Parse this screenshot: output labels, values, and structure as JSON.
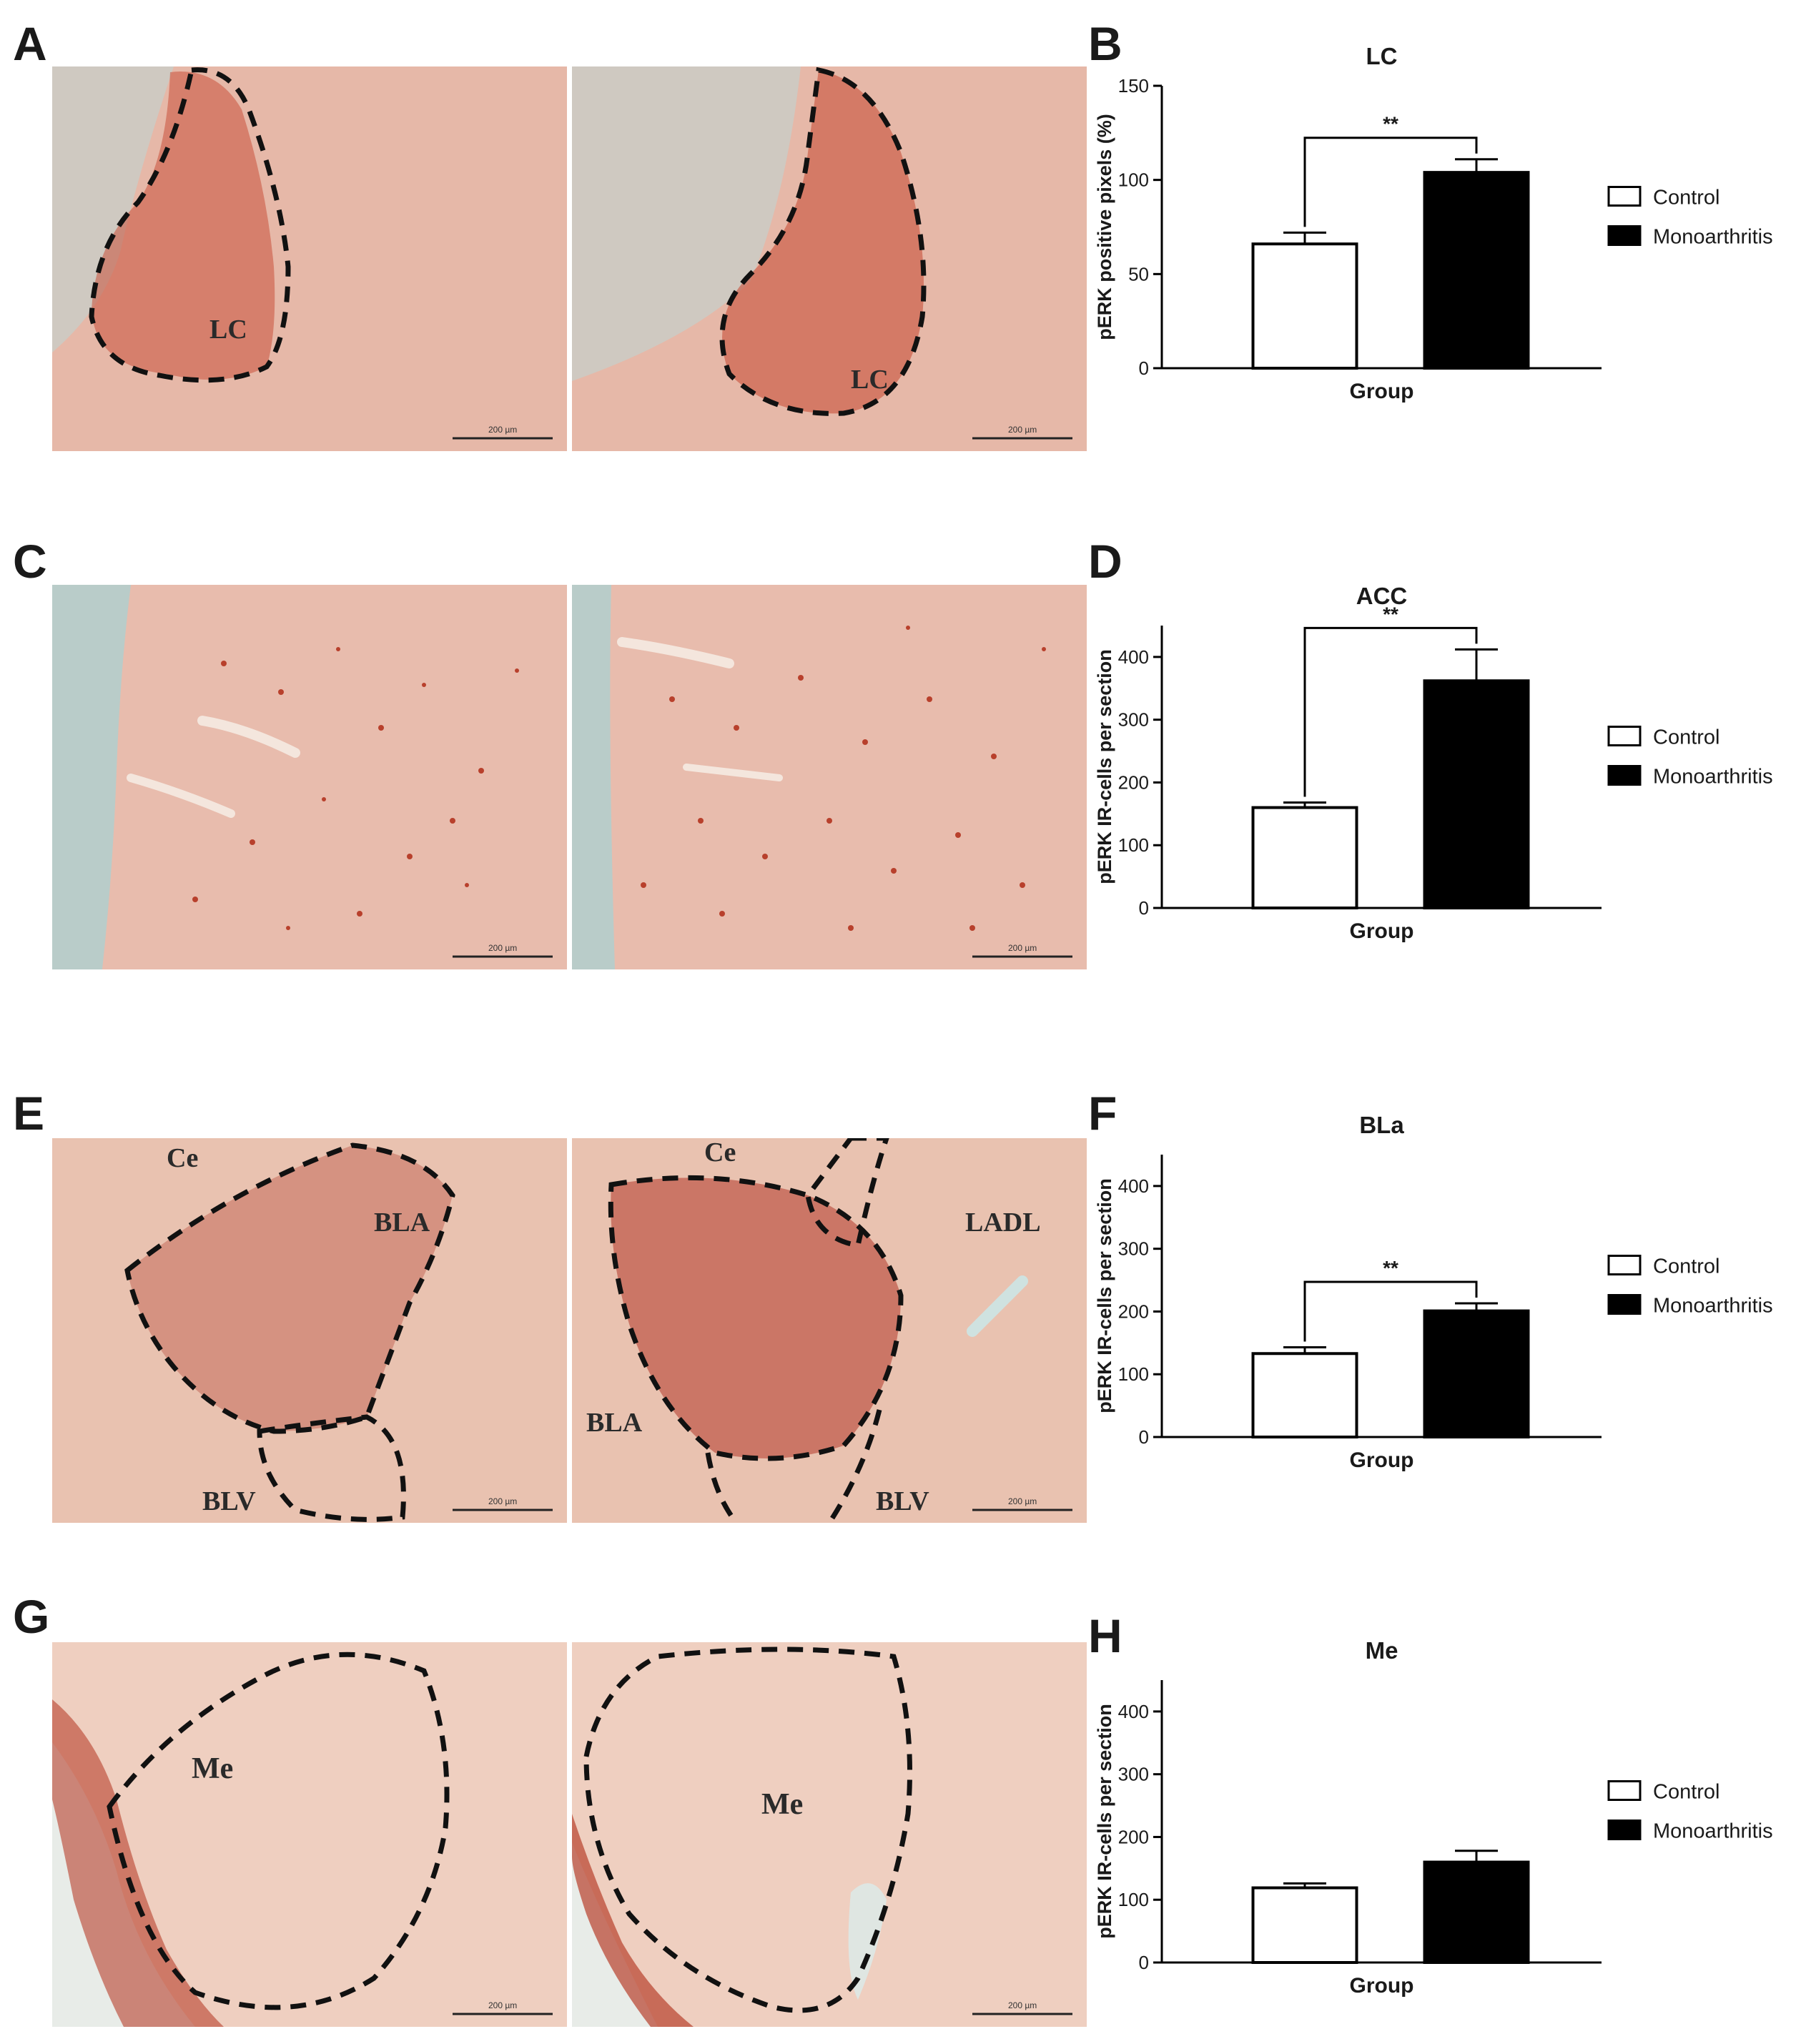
{
  "panels": {
    "letters": [
      "A",
      "B",
      "C",
      "D",
      "E",
      "F",
      "G",
      "H"
    ]
  },
  "micrographs": {
    "scale_bar": "200 µm",
    "rows": [
      {
        "id": "A",
        "left_labels": [
          "LC"
        ],
        "right_labels": [
          "LC"
        ],
        "tint": "#e6b8a8",
        "dense": "#c8503a"
      },
      {
        "id": "C",
        "left_labels": [],
        "right_labels": [],
        "tint": "#e8bcad",
        "dense": "#b8402c"
      },
      {
        "id": "E",
        "left_labels": [
          "Ce",
          "BLA",
          "BLV"
        ],
        "right_labels": [
          "Ce",
          "LADL",
          "BLA",
          "BLV"
        ],
        "tint": "#e9c2b0",
        "dense": "#b3382a"
      },
      {
        "id": "G",
        "left_labels": [
          "Me"
        ],
        "right_labels": [
          "Me"
        ],
        "tint": "#efcfc0",
        "dense": "#b8402c"
      }
    ]
  },
  "chart_data": [
    {
      "type": "bar",
      "panel": "B",
      "title": "LC",
      "xlabel": "Group",
      "ylabel": "pERK positive pixels (%)",
      "categories": [
        "Control",
        "Monoarthritis"
      ],
      "values": [
        66,
        104
      ],
      "errors": [
        6,
        7
      ],
      "ylim": [
        0,
        150
      ],
      "yticks": [
        0,
        50,
        100,
        150
      ],
      "significance": "**",
      "legend": [
        "Control",
        "Monoarthritis"
      ],
      "colors": [
        "#ffffff",
        "#000000"
      ]
    },
    {
      "type": "bar",
      "panel": "D",
      "title": "ACC",
      "xlabel": "Group",
      "ylabel": "pERK IR-cells per section",
      "categories": [
        "Control",
        "Monoarthritis"
      ],
      "values": [
        160,
        362
      ],
      "errors": [
        8,
        50
      ],
      "ylim": [
        0,
        450
      ],
      "yticks": [
        0,
        100,
        200,
        300,
        400
      ],
      "significance": "**",
      "legend": [
        "Control",
        "Monoarthritis"
      ],
      "colors": [
        "#ffffff",
        "#000000"
      ]
    },
    {
      "type": "bar",
      "panel": "F",
      "title": "BLa",
      "xlabel": "Group",
      "ylabel": "pERK IR-cells per section",
      "categories": [
        "Control",
        "Monoarthritis"
      ],
      "values": [
        133,
        201
      ],
      "errors": [
        10,
        12
      ],
      "ylim": [
        0,
        450
      ],
      "yticks": [
        0,
        100,
        200,
        300,
        400
      ],
      "significance": "**",
      "legend": [
        "Control",
        "Monoarthritis"
      ],
      "colors": [
        "#ffffff",
        "#000000"
      ]
    },
    {
      "type": "bar",
      "panel": "H",
      "title": "Me",
      "xlabel": "Group",
      "ylabel": "pERK IR-cells per section",
      "categories": [
        "Control",
        "Monoarthritis"
      ],
      "values": [
        119,
        160
      ],
      "errors": [
        7,
        18
      ],
      "ylim": [
        0,
        450
      ],
      "yticks": [
        0,
        100,
        200,
        300,
        400
      ],
      "significance": "",
      "legend": [
        "Control",
        "Monoarthritis"
      ],
      "colors": [
        "#ffffff",
        "#000000"
      ]
    }
  ]
}
